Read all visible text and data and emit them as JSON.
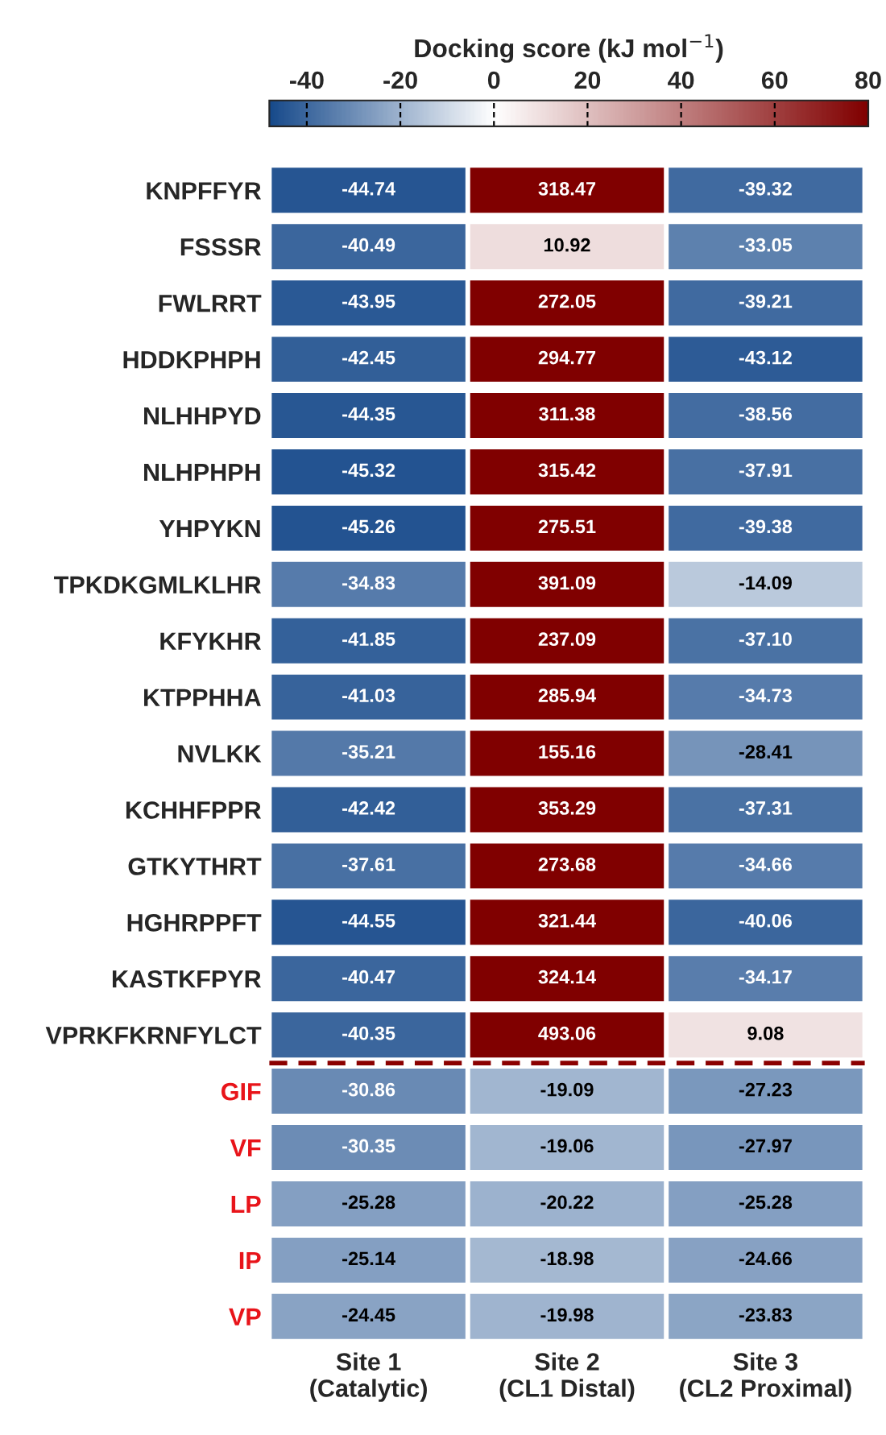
{
  "chart_data": {
    "type": "heatmap",
    "clabel": "Docking score (kJ mol$^{−1}$)",
    "categories": [
      "Site 1\n(Catalytic)",
      "Site 2\n(CL1 Distal)",
      "Site 3\n(CL2 Proximal)"
    ],
    "y_categories": [
      "KNPFFYR",
      "FSSSR",
      "FWLRRT",
      "HDDKPHPH",
      "NLHHPYD",
      "NLHPHPH",
      "YHPYKN",
      "TPKDKGMLKLHR",
      "KFYKHR",
      "KTPPHHA",
      "NVLKK",
      "KCHHFPPR",
      "GTKYTHRT",
      "HGHRPPFT",
      "KASTKFPYR",
      "VPRKFKRNFYLCT",
      "GIF",
      "VF",
      "LP",
      "IP",
      "VP"
    ],
    "cells": [
      [
        -44.74,
        318.47,
        -39.32
      ],
      [
        -40.49,
        10.92,
        -33.05
      ],
      [
        -43.95,
        272.05,
        -39.21
      ],
      [
        -42.45,
        294.77,
        -43.12
      ],
      [
        -44.35,
        311.38,
        -38.56
      ],
      [
        -45.32,
        315.42,
        -37.91
      ],
      [
        -45.26,
        275.51,
        -39.38
      ],
      [
        -34.83,
        391.09,
        -14.09
      ],
      [
        -41.85,
        237.09,
        -37.1
      ],
      [
        -41.03,
        285.94,
        -34.73
      ],
      [
        -35.21,
        155.16,
        -28.41
      ],
      [
        -42.42,
        353.29,
        -37.31
      ],
      [
        -37.61,
        273.68,
        -34.66
      ],
      [
        -44.55,
        321.44,
        -40.06
      ],
      [
        -40.47,
        324.14,
        -34.17
      ],
      [
        -40.35,
        493.06,
        9.08
      ],
      [
        -30.86,
        -19.09,
        -27.23
      ],
      [
        -30.35,
        -19.06,
        -27.97
      ],
      [
        -25.28,
        -20.22,
        -25.28
      ],
      [
        -25.14,
        -18.98,
        -24.66
      ],
      [
        -24.45,
        -19.98,
        -23.83
      ]
    ],
    "cell_labels": [
      [
        "-44.74",
        "318.47",
        "-39.32"
      ],
      [
        "-40.49",
        "10.92",
        "-33.05"
      ],
      [
        "-43.95",
        "272.05",
        "-39.21"
      ],
      [
        "-42.45",
        "294.77",
        "-43.12"
      ],
      [
        "-44.35",
        "311.38",
        "-38.56"
      ],
      [
        "-45.32",
        "315.42",
        "-37.91"
      ],
      [
        "-45.26",
        "275.51",
        "-39.38"
      ],
      [
        "-34.83",
        "391.09",
        "-14.09"
      ],
      [
        "-41.85",
        "237.09",
        "-37.10"
      ],
      [
        "-41.03",
        "285.94",
        "-34.73"
      ],
      [
        "-35.21",
        "155.16",
        "-28.41"
      ],
      [
        "-42.42",
        "353.29",
        "-37.31"
      ],
      [
        "-37.61",
        "273.68",
        "-34.66"
      ],
      [
        "-44.55",
        "321.44",
        "-40.06"
      ],
      [
        "-40.47",
        "324.14",
        "-34.17"
      ],
      [
        "-40.35",
        "493.06",
        "9.08"
      ],
      [
        "-30.86",
        "-19.09",
        "-27.23"
      ],
      [
        "-30.35",
        "-19.06",
        "-27.97"
      ],
      [
        "-25.28",
        "-20.22",
        "-25.28"
      ],
      [
        "-25.14",
        "-18.98",
        "-24.66"
      ],
      [
        "-24.45",
        "-19.98",
        "-23.83"
      ]
    ],
    "clim": [
      -48,
      80
    ],
    "cticks": [
      -40,
      -20,
      0,
      20,
      40,
      60,
      80
    ],
    "ref_lines": [
      {
        "axis": "y",
        "value": "GIF",
        "color": "#8b0000",
        "line_style": "dashed"
      }
    ]
  }
}
